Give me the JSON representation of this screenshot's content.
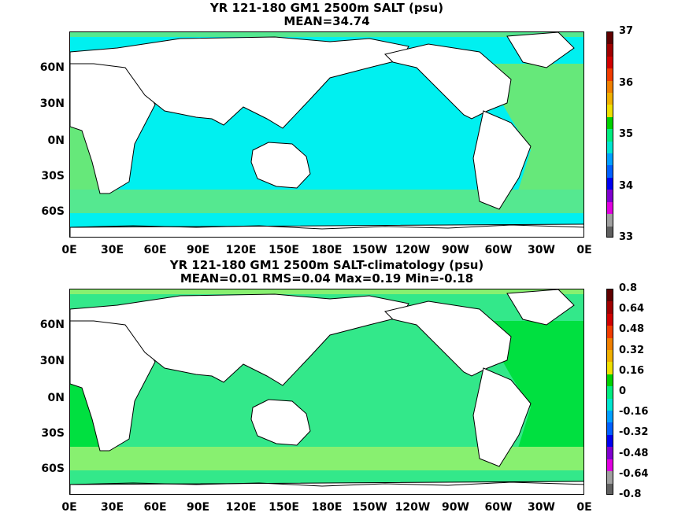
{
  "panels": [
    {
      "title_line1": "YR 121-180 GM1 2500m SALT (psu)",
      "title_line2": "MEAN=34.74",
      "y_ticks": [
        "60N",
        "30N",
        "0N",
        "30S",
        "60S"
      ],
      "x_ticks": [
        "0E",
        "30E",
        "60E",
        "90E",
        "120E",
        "150E",
        "180E",
        "150W",
        "120W",
        "90W",
        "60W",
        "30W",
        "0E"
      ],
      "colorbar_labels": [
        "37",
        "36",
        "35",
        "34",
        "33"
      ],
      "colorbar_colors": [
        "#600000",
        "#a00000",
        "#d00000",
        "#f03c00",
        "#f08000",
        "#f0b000",
        "#f0e000",
        "#00d200",
        "#00ee80",
        "#00e6d0",
        "#00a0ff",
        "#0060ff",
        "#0000f0",
        "#8000d0",
        "#e000e0",
        "#a0a0a0",
        "#606060"
      ],
      "fill_colors": {
        "basin": "#00f0f0",
        "atlantic": "#66e87a",
        "southern": "#55e890"
      }
    },
    {
      "title_line1": "YR 121-180 GM1 2500m SALT-climatology (psu)",
      "title_line2": "MEAN=0.01   RMS=0.04   Max=0.19   Min=-0.18",
      "y_ticks": [
        "60N",
        "30N",
        "0N",
        "30S",
        "60S"
      ],
      "x_ticks": [
        "0E",
        "30E",
        "60E",
        "90E",
        "120E",
        "150E",
        "180E",
        "150W",
        "120W",
        "90W",
        "60W",
        "30W",
        "0E"
      ],
      "colorbar_labels": [
        "0.8",
        "0.64",
        "0.48",
        "0.32",
        "0.16",
        "0",
        "-0.16",
        "-0.32",
        "-0.48",
        "-0.64",
        "-0.8"
      ],
      "colorbar_colors": [
        "#600000",
        "#a00000",
        "#d00000",
        "#f03c00",
        "#f08000",
        "#f0b000",
        "#f0e000",
        "#00d200",
        "#00ee80",
        "#00e6d0",
        "#00a0ff",
        "#0060ff",
        "#0000f0",
        "#8000d0",
        "#e000e0",
        "#a0a0a0",
        "#606060"
      ],
      "fill_colors": {
        "basin": "#33e88a",
        "atlantic": "#00e040",
        "southern": "#88f070"
      }
    }
  ]
}
